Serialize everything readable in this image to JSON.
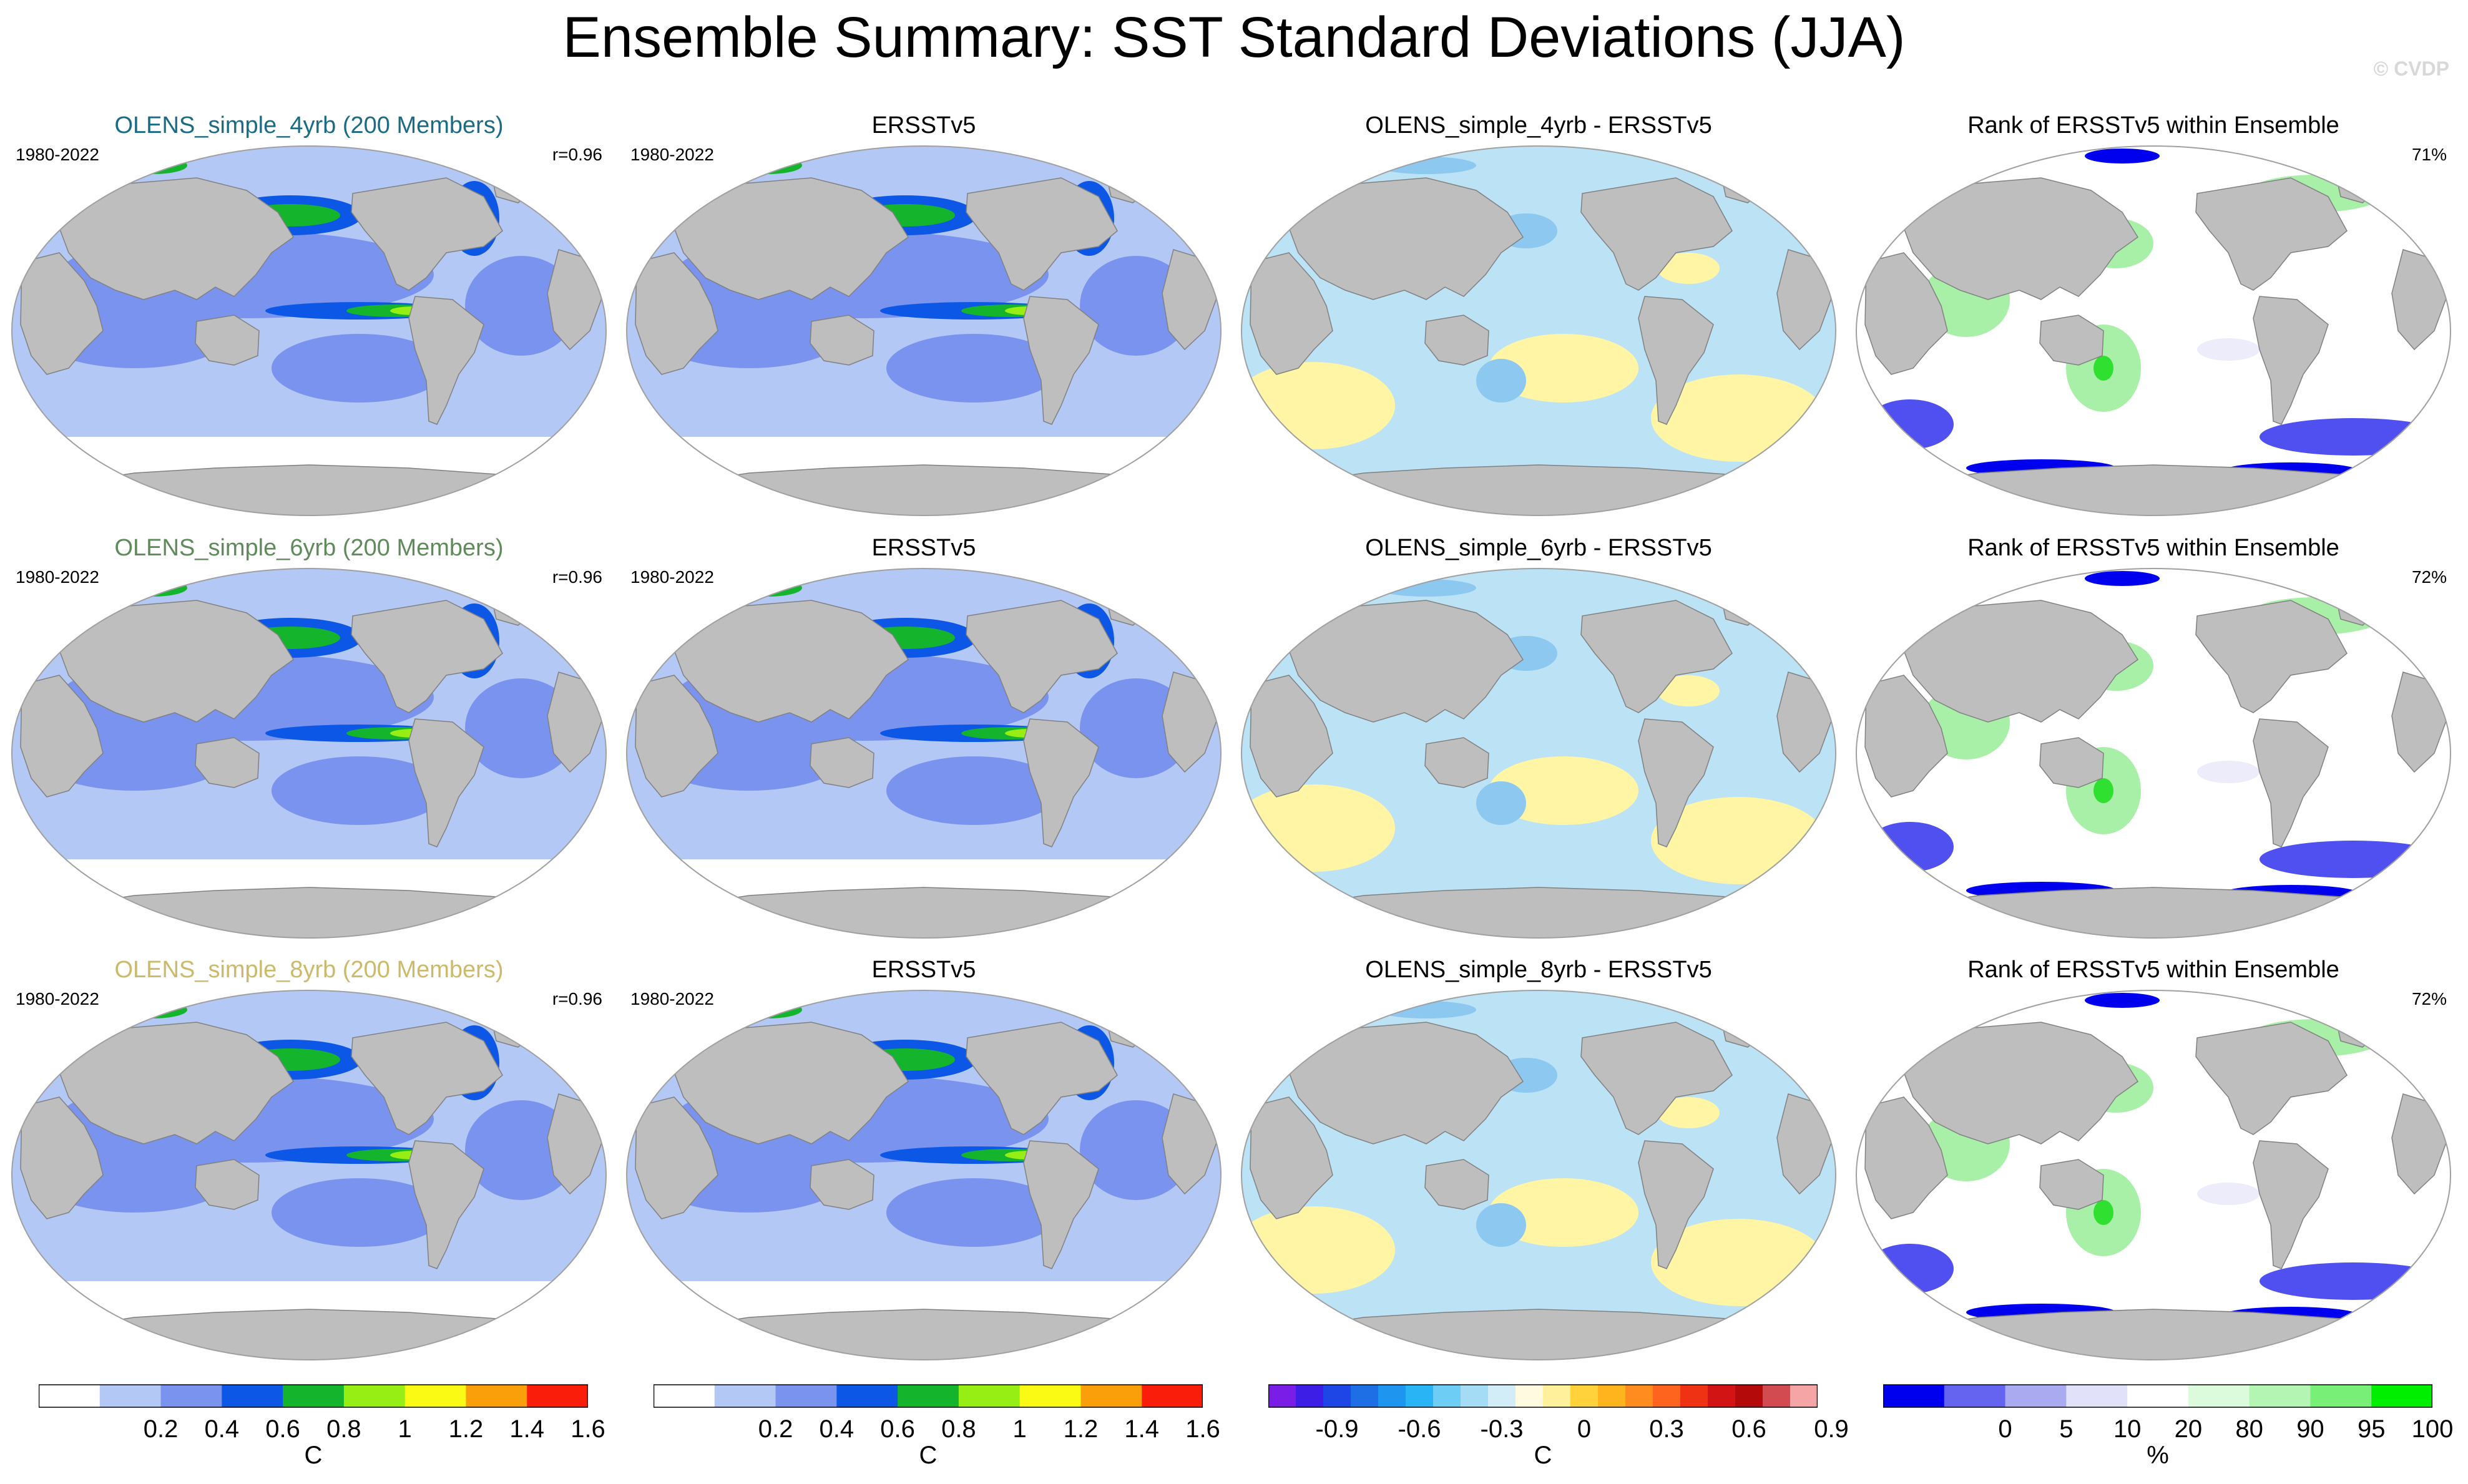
{
  "title": "Ensemble Summary: SST Standard Deviations (JJA)",
  "credit": "© CVDP",
  "rows": [
    {
      "model": {
        "label": "OLENS_simple_4yrb (200 Members)",
        "color": "#1a6b85",
        "years": "1980-2022",
        "corr": "r=0.96"
      },
      "obs": {
        "label": "ERSSTv5",
        "years": "1980-2022"
      },
      "diff": {
        "label": "OLENS_simple_4yrb - ERSSTv5"
      },
      "rank": {
        "label": "Rank of ERSSTv5 within Ensemble",
        "pct": "71%"
      }
    },
    {
      "model": {
        "label": "OLENS_simple_6yrb (200 Members)",
        "color": "#5f8a5a",
        "years": "1980-2022",
        "corr": "r=0.96"
      },
      "obs": {
        "label": "ERSSTv5",
        "years": "1980-2022"
      },
      "diff": {
        "label": "OLENS_simple_6yrb - ERSSTv5"
      },
      "rank": {
        "label": "Rank of ERSSTv5 within Ensemble",
        "pct": "72%"
      }
    },
    {
      "model": {
        "label": "OLENS_simple_8yrb (200 Members)",
        "color": "#cdb96a",
        "years": "1980-2022",
        "corr": "r=0.96"
      },
      "obs": {
        "label": "ERSSTv5",
        "years": "1980-2022"
      },
      "diff": {
        "label": "OLENS_simple_8yrb - ERSSTv5"
      },
      "rank": {
        "label": "Rank of ERSSTv5 within Ensemble",
        "pct": "72%"
      }
    }
  ],
  "colorbars": {
    "sd": {
      "colors": [
        "#ffffff",
        "#b4c8f5",
        "#7a93ee",
        "#0c57e6",
        "#14b42c",
        "#96ee14",
        "#fafa14",
        "#fa9e0a",
        "#fa1e0a"
      ],
      "ticks": [
        "0.2",
        "0.4",
        "0.6",
        "0.8",
        "1",
        "1.2",
        "1.4",
        "1.6"
      ],
      "unit": "C"
    },
    "diff": {
      "colors": [
        "#7a1de6",
        "#3c1ee6",
        "#1e46e6",
        "#1e6ee6",
        "#1e96f0",
        "#28b4f5",
        "#6ecdf5",
        "#a5dcf5",
        "#d2ecf8",
        "#fffae0",
        "#fff09b",
        "#ffd23c",
        "#ffb41e",
        "#ff8c1e",
        "#ff641e",
        "#f03214",
        "#d21414",
        "#b40a0a",
        "#d24b50",
        "#f5a5a5"
      ],
      "ticks": [
        "-0.9",
        "-0.6",
        "-0.3",
        "0",
        "0.3",
        "0.6",
        "0.9"
      ],
      "unit": "C"
    },
    "rank": {
      "colors": [
        "#0000ee",
        "#6464f0",
        "#aaaaf0",
        "#e1e1fa",
        "#ffffff",
        "#dcfadc",
        "#b4f5b4",
        "#78f078",
        "#00ee00"
      ],
      "ticks": [
        "0",
        "5",
        "10",
        "20",
        "80",
        "90",
        "95",
        "100"
      ],
      "unit": "%"
    }
  },
  "map_colors": {
    "land": "#bebebe",
    "sd_base": "#b4c8f5",
    "sd_mid": "#7a93ee",
    "sd_high": "#0c57e6",
    "sd_green": "#14b42c",
    "sd_lime": "#96ee14",
    "sd_yellow": "#fafa14",
    "sd_orange": "#fa9e0a",
    "sd_red": "#fa1e0a",
    "diff_base": "#bce2f5",
    "diff_blue": "#8cc8f0",
    "diff_yellow": "#fff5a5",
    "rank_green": "#a8f0a8",
    "rank_green_dark": "#30e030",
    "rank_blue": "#5050f0",
    "rank_dark_blue": "#0000ee",
    "rank_light": "#ececfa"
  }
}
